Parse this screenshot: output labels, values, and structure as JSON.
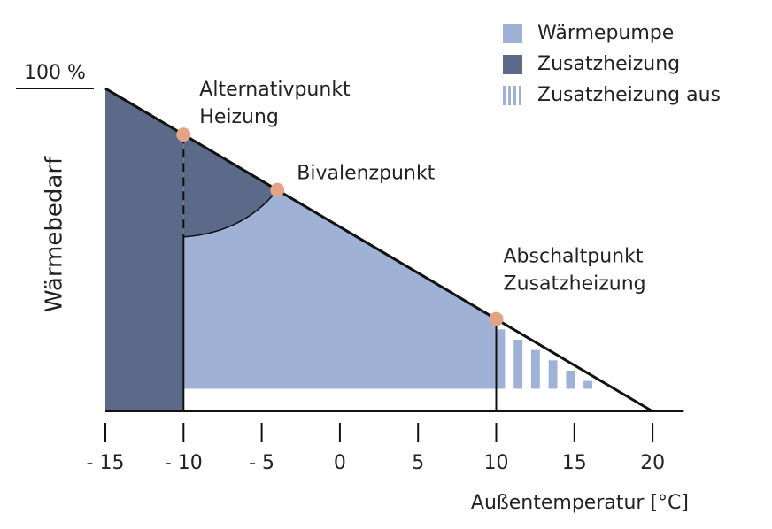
{
  "chart_data": {
    "type": "heating-diagram",
    "y_label": "Wärmebedarf",
    "x_label": "Außentemperatur [°C]",
    "xlim": [
      -15,
      22
    ],
    "ylim": [
      0,
      100
    ],
    "xticks": [
      {
        "value": -15,
        "label": "- 15"
      },
      {
        "value": -10,
        "label": "- 10"
      },
      {
        "value": -5,
        "label": "- 5"
      },
      0,
      5,
      10,
      15,
      20
    ],
    "yticks": [
      {
        "value": 100,
        "label": "100 %"
      }
    ],
    "demand_line": {
      "x": [
        -15,
        20
      ],
      "y": [
        100,
        0
      ]
    },
    "heat_pump_floor": 7,
    "bivalence_curve_start": 54,
    "stripes_end": 16.7,
    "points": [
      {
        "label_lines": [
          "Alternativpunkt",
          "Heizung"
        ],
        "x": -10,
        "y": 85.7
      },
      {
        "label_lines": [
          "Bivalenzpunkt"
        ],
        "x": -4,
        "y": 68.6
      },
      {
        "label_lines": [
          "Abschaltpunkt",
          "Zusatzheizung"
        ],
        "x": 10,
        "y": 28.6
      }
    ],
    "point_color": "#e3a385",
    "series": [
      {
        "name": "Wärmepumpe",
        "color": "#9fb2d6"
      },
      {
        "name": "Zusatzheizung",
        "color": "#5b6a88"
      },
      {
        "name": "Zusatzheizung aus",
        "color": "#9fb2d6"
      }
    ]
  }
}
